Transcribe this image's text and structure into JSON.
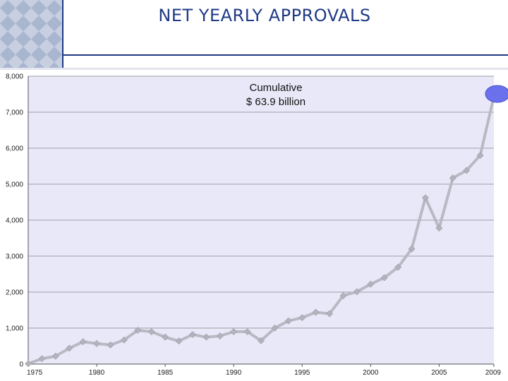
{
  "page": {
    "title": "NET YEARLY APPROVALS"
  },
  "chart_data": {
    "type": "line",
    "title": "",
    "xlabel": "",
    "ylabel": "",
    "xlim": [
      1975,
      2009
    ],
    "ylim": [
      0,
      8000
    ],
    "y_ticks": [
      0,
      1000,
      2000,
      3000,
      4000,
      5000,
      6000,
      7000,
      8000
    ],
    "y_tick_labels": [
      "0",
      "1,000",
      "2,000",
      "3,000",
      "4,000",
      "5,000",
      "6,000",
      "7,000",
      "8,000"
    ],
    "x_ticks": [
      1975,
      1980,
      1985,
      1990,
      1995,
      2000,
      2005,
      2009
    ],
    "x_tick_labels": [
      "1975",
      "1980",
      "1985",
      "1990",
      "1995",
      "2000",
      "2005",
      "2009"
    ],
    "grid": "horizontal",
    "annotation": {
      "line1": "Cumulative",
      "line2": "$ 63.9 billion"
    },
    "highlight": {
      "x": 2009,
      "y": 7430
    },
    "colors": {
      "plot_background": "#e8e8f8",
      "line": "#b9b9c4",
      "marker": "#b3b3be",
      "highlight": "#6b70ec",
      "grid": "#a0a0a8",
      "title": "#1f3a86"
    },
    "series": [
      {
        "x": [
          1975,
          1976,
          1977,
          1978,
          1979,
          1980,
          1981,
          1982,
          1983,
          1984,
          1985,
          1986,
          1987,
          1988,
          1989,
          1990,
          1991,
          1992,
          1993,
          1994,
          1995,
          1996,
          1997,
          1998,
          1999,
          2000,
          2001,
          2002,
          2003,
          2004,
          2005,
          2006,
          2007,
          2008,
          2009
        ],
        "values": [
          10,
          150,
          220,
          440,
          620,
          570,
          530,
          670,
          940,
          900,
          750,
          640,
          820,
          750,
          780,
          900,
          900,
          650,
          1000,
          1200,
          1290,
          1440,
          1400,
          1900,
          2010,
          2220,
          2400,
          2690,
          3200,
          4620,
          3780,
          5170,
          5380,
          5800,
          7430
        ]
      }
    ]
  }
}
